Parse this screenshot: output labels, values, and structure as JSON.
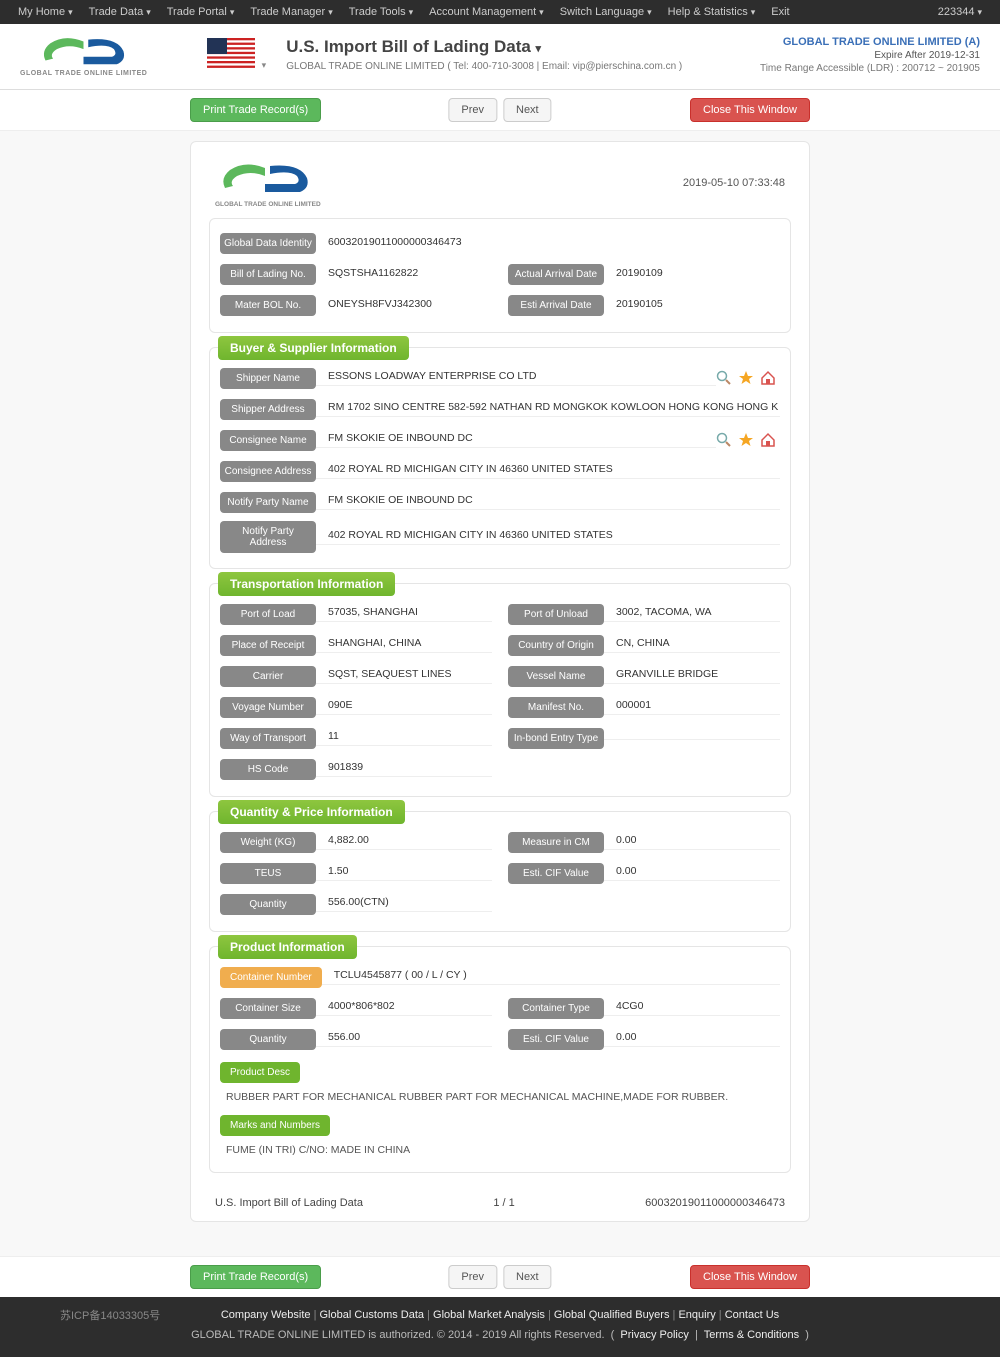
{
  "topnav": {
    "items": [
      "My Home",
      "Trade Data",
      "Trade Portal",
      "Trade Manager",
      "Trade Tools",
      "Account Management",
      "Switch Language",
      "Help & Statistics",
      "Exit"
    ],
    "user": "223344"
  },
  "header": {
    "logo_tagline": "GLOBAL TRADE ONLINE LIMITED",
    "title": "U.S. Import Bill of Lading Data",
    "subtitle": "GLOBAL TRADE ONLINE LIMITED ( Tel: 400-710-3008 | Email: vip@pierschina.com.cn )",
    "company": "GLOBAL TRADE ONLINE LIMITED (A)",
    "expire": "Expire After 2019-12-31",
    "time_range": "Time Range Accessible (LDR) : 200712 ~ 201905"
  },
  "actions": {
    "print": "Print Trade Record(s)",
    "prev": "Prev",
    "next": "Next",
    "close": "Close This Window"
  },
  "record": {
    "timestamp": "2019-05-10 07:33:48",
    "top": {
      "gdi_label": "Global Data Identity",
      "gdi": "60032019011000000346473",
      "bol_label": "Bill of Lading No.",
      "bol": "SQSTSHA1162822",
      "master_label": "Mater BOL No.",
      "master": "ONEYSH8FVJ342300",
      "aad_label": "Actual Arrival Date",
      "aad": "20190109",
      "ead_label": "Esti Arrival Date",
      "ead": "20190105"
    },
    "buyer": {
      "title": "Buyer & Supplier Information",
      "shipper_name_l": "Shipper Name",
      "shipper_name": "ESSONS LOADWAY ENTERPRISE CO LTD",
      "shipper_addr_l": "Shipper Address",
      "shipper_addr": "RM 1702 SINO CENTRE 582-592 NATHAN RD MONGKOK KOWLOON HONG KONG HONG K",
      "consignee_name_l": "Consignee Name",
      "consignee_name": "FM SKOKIE OE INBOUND DC",
      "consignee_addr_l": "Consignee Address",
      "consignee_addr": "402 ROYAL RD MICHIGAN CITY IN 46360 UNITED STATES",
      "notify_name_l": "Notify Party Name",
      "notify_name": "FM SKOKIE OE INBOUND DC",
      "notify_addr_l": "Notify Party Address",
      "notify_addr": "402 ROYAL RD MICHIGAN CITY IN 46360 UNITED STATES"
    },
    "transport": {
      "title": "Transportation Information",
      "left": [
        {
          "l": "Port of Load",
          "v": "57035, SHANGHAI"
        },
        {
          "l": "Place of Receipt",
          "v": "SHANGHAI, CHINA"
        },
        {
          "l": "Carrier",
          "v": "SQST, SEAQUEST LINES"
        },
        {
          "l": "Voyage Number",
          "v": "090E"
        },
        {
          "l": "Way of Transport",
          "v": "11"
        },
        {
          "l": "HS Code",
          "v": "901839"
        }
      ],
      "right": [
        {
          "l": "Port of Unload",
          "v": "3002, TACOMA, WA"
        },
        {
          "l": "Country of Origin",
          "v": "CN, CHINA"
        },
        {
          "l": "Vessel Name",
          "v": "GRANVILLE BRIDGE"
        },
        {
          "l": "Manifest No.",
          "v": "000001"
        },
        {
          "l": "In-bond Entry Type",
          "v": ""
        }
      ]
    },
    "qty": {
      "title": "Quantity & Price Information",
      "left": [
        {
          "l": "Weight (KG)",
          "v": "4,882.00"
        },
        {
          "l": "TEUS",
          "v": "1.50"
        },
        {
          "l": "Quantity",
          "v": "556.00(CTN)"
        }
      ],
      "right": [
        {
          "l": "Measure in CM",
          "v": "0.00"
        },
        {
          "l": "Esti. CIF Value",
          "v": "0.00"
        }
      ]
    },
    "product": {
      "title": "Product Information",
      "container_num_l": "Container Number",
      "container_num": "TCLU4545877 ( 00 / L / CY )",
      "left": [
        {
          "l": "Container Size",
          "v": "4000*806*802"
        },
        {
          "l": "Quantity",
          "v": "556.00"
        }
      ],
      "right": [
        {
          "l": "Container Type",
          "v": "4CG0"
        },
        {
          "l": "Esti. CIF Value",
          "v": "0.00"
        }
      ],
      "desc_l": "Product Desc",
      "desc": "RUBBER PART FOR MECHANICAL RUBBER PART FOR MECHANICAL MACHINE,MADE FOR RUBBER.",
      "marks_l": "Marks and Numbers",
      "marks": "FUME (IN TRI) C/NO: MADE IN CHINA"
    },
    "footer": {
      "title": "U.S. Import Bill of Lading Data",
      "page": "1 / 1",
      "id": "60032019011000000346473"
    }
  },
  "footer": {
    "links": [
      "Company Website",
      "Global Customs Data",
      "Global Market Analysis",
      "Global Qualified Buyers",
      "Enquiry",
      "Contact Us"
    ],
    "copy": "GLOBAL TRADE ONLINE LIMITED is authorized. © 2014 - 2019 All rights Reserved.",
    "privacy": "Privacy Policy",
    "terms": "Terms & Conditions",
    "icp": "苏ICP备14033305号"
  }
}
